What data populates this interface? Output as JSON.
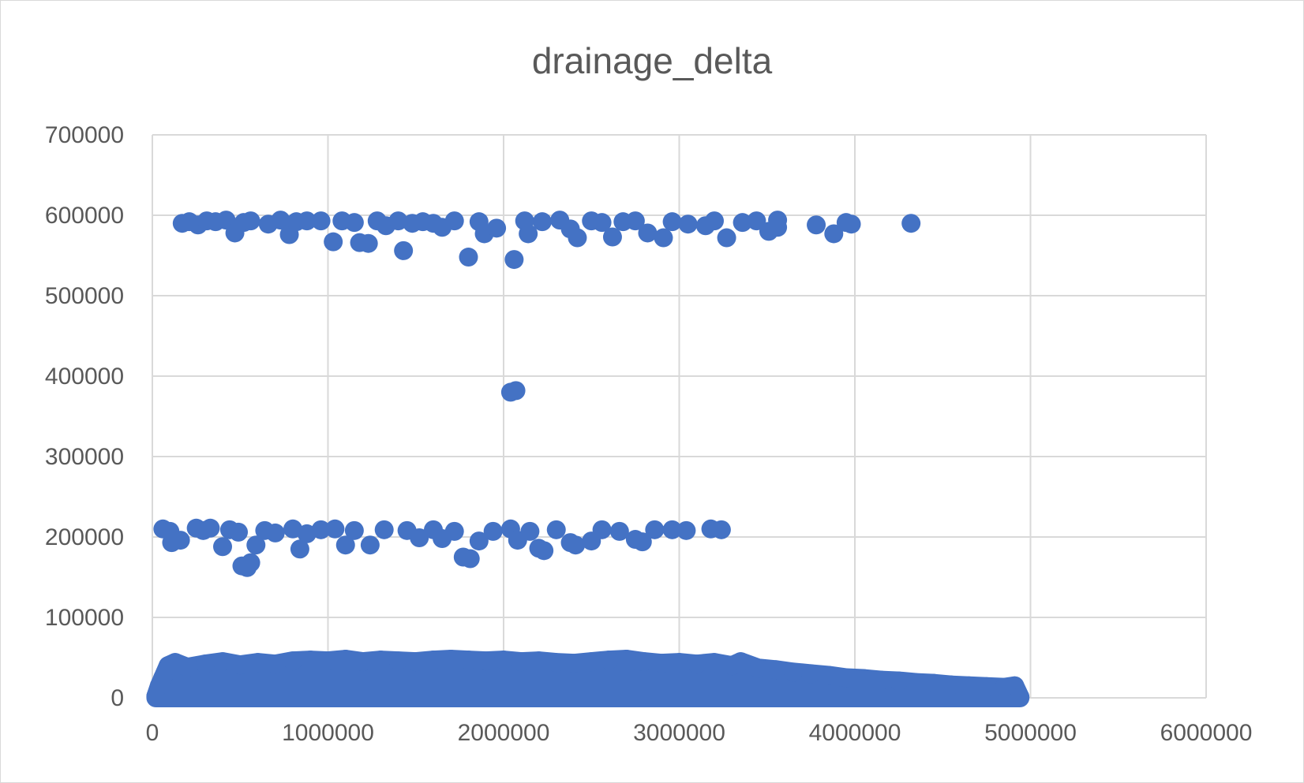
{
  "chart_data": {
    "type": "scatter",
    "title": "drainage_delta",
    "xlabel": "",
    "ylabel": "",
    "xlim": [
      0,
      6000000
    ],
    "ylim": [
      0,
      700000
    ],
    "x_ticks": [
      0,
      1000000,
      2000000,
      3000000,
      4000000,
      5000000,
      6000000
    ],
    "y_ticks": [
      0,
      100000,
      200000,
      300000,
      400000,
      500000,
      600000,
      700000
    ],
    "x_tick_labels": [
      "0",
      "1000000",
      "2000000",
      "3000000",
      "4000000",
      "5000000",
      "6000000"
    ],
    "y_tick_labels": [
      "0",
      "100000",
      "200000",
      "300000",
      "400000",
      "500000",
      "600000",
      "700000"
    ],
    "grid": true,
    "legend": "none",
    "marker_color": "#4472C4",
    "series": [
      {
        "points": [
          [
            170000,
            590000
          ],
          [
            210000,
            592000
          ],
          [
            260000,
            588000
          ],
          [
            310000,
            593000
          ],
          [
            360000,
            592000
          ],
          [
            420000,
            594000
          ],
          [
            470000,
            578000
          ],
          [
            520000,
            591000
          ],
          [
            560000,
            593000
          ],
          [
            660000,
            589000
          ],
          [
            730000,
            594000
          ],
          [
            780000,
            576000
          ],
          [
            820000,
            592000
          ],
          [
            880000,
            593000
          ],
          [
            960000,
            593000
          ],
          [
            1030000,
            567000
          ],
          [
            1080000,
            593000
          ],
          [
            1150000,
            591000
          ],
          [
            1180000,
            566000
          ],
          [
            1230000,
            565000
          ],
          [
            1280000,
            593000
          ],
          [
            1330000,
            587000
          ],
          [
            1400000,
            593000
          ],
          [
            1430000,
            556000
          ],
          [
            1480000,
            590000
          ],
          [
            1540000,
            592000
          ],
          [
            1600000,
            590000
          ],
          [
            1650000,
            585000
          ],
          [
            1720000,
            593000
          ],
          [
            1800000,
            548000
          ],
          [
            1860000,
            592000
          ],
          [
            1890000,
            577000
          ],
          [
            1960000,
            584000
          ],
          [
            2060000,
            545000
          ],
          [
            2120000,
            593000
          ],
          [
            2140000,
            577000
          ],
          [
            2220000,
            592000
          ],
          [
            2320000,
            594000
          ],
          [
            2380000,
            583000
          ],
          [
            2420000,
            572000
          ],
          [
            2500000,
            593000
          ],
          [
            2560000,
            591000
          ],
          [
            2620000,
            573000
          ],
          [
            2680000,
            592000
          ],
          [
            2750000,
            593000
          ],
          [
            2820000,
            578000
          ],
          [
            2910000,
            572000
          ],
          [
            2960000,
            592000
          ],
          [
            3050000,
            589000
          ],
          [
            3150000,
            587000
          ],
          [
            3200000,
            593000
          ],
          [
            3270000,
            572000
          ],
          [
            3360000,
            591000
          ],
          [
            3440000,
            593000
          ],
          [
            3510000,
            580000
          ],
          [
            3560000,
            594000
          ],
          [
            3560000,
            585000
          ],
          [
            3780000,
            588000
          ],
          [
            3880000,
            577000
          ],
          [
            3950000,
            591000
          ],
          [
            3980000,
            589000
          ],
          [
            4320000,
            590000
          ],
          [
            2040000,
            380000
          ],
          [
            2070000,
            382000
          ],
          [
            60000,
            210000
          ],
          [
            100000,
            207000
          ],
          [
            110000,
            193000
          ],
          [
            160000,
            196000
          ],
          [
            250000,
            211000
          ],
          [
            290000,
            208000
          ],
          [
            330000,
            211000
          ],
          [
            400000,
            188000
          ],
          [
            440000,
            209000
          ],
          [
            490000,
            206000
          ],
          [
            510000,
            164000
          ],
          [
            540000,
            162000
          ],
          [
            560000,
            168000
          ],
          [
            590000,
            190000
          ],
          [
            640000,
            208000
          ],
          [
            700000,
            205000
          ],
          [
            800000,
            210000
          ],
          [
            840000,
            185000
          ],
          [
            880000,
            204000
          ],
          [
            960000,
            209000
          ],
          [
            1040000,
            210000
          ],
          [
            1100000,
            190000
          ],
          [
            1150000,
            208000
          ],
          [
            1240000,
            190000
          ],
          [
            1320000,
            209000
          ],
          [
            1450000,
            208000
          ],
          [
            1520000,
            199000
          ],
          [
            1600000,
            209000
          ],
          [
            1650000,
            198000
          ],
          [
            1720000,
            207000
          ],
          [
            1770000,
            175000
          ],
          [
            1810000,
            173000
          ],
          [
            1860000,
            195000
          ],
          [
            1940000,
            207000
          ],
          [
            2040000,
            210000
          ],
          [
            2080000,
            196000
          ],
          [
            2150000,
            207000
          ],
          [
            2200000,
            186000
          ],
          [
            2230000,
            183000
          ],
          [
            2300000,
            209000
          ],
          [
            2380000,
            193000
          ],
          [
            2410000,
            190000
          ],
          [
            2500000,
            195000
          ],
          [
            2560000,
            209000
          ],
          [
            2660000,
            207000
          ],
          [
            2750000,
            197000
          ],
          [
            2790000,
            194000
          ],
          [
            2860000,
            209000
          ],
          [
            2960000,
            209000
          ],
          [
            3040000,
            208000
          ],
          [
            3180000,
            210000
          ],
          [
            3240000,
            209000
          ],
          [
            20000,
            2000
          ],
          [
            40000,
            15000
          ],
          [
            60000,
            25000
          ],
          [
            90000,
            40000
          ],
          [
            130000,
            44000
          ],
          [
            200000,
            38000
          ],
          [
            300000,
            42000
          ],
          [
            400000,
            45000
          ],
          [
            500000,
            41000
          ],
          [
            600000,
            44000
          ],
          [
            700000,
            42000
          ],
          [
            800000,
            46000
          ],
          [
            900000,
            47000
          ],
          [
            1000000,
            46000
          ],
          [
            1100000,
            48000
          ],
          [
            1200000,
            45000
          ],
          [
            1300000,
            47000
          ],
          [
            1400000,
            46000
          ],
          [
            1500000,
            45000
          ],
          [
            1600000,
            47000
          ],
          [
            1700000,
            48000
          ],
          [
            1800000,
            47000
          ],
          [
            1900000,
            46000
          ],
          [
            2000000,
            47000
          ],
          [
            2100000,
            45000
          ],
          [
            2200000,
            46000
          ],
          [
            2300000,
            44000
          ],
          [
            2400000,
            43000
          ],
          [
            2500000,
            45000
          ],
          [
            2600000,
            47000
          ],
          [
            2700000,
            48000
          ],
          [
            2800000,
            45000
          ],
          [
            2900000,
            43000
          ],
          [
            3000000,
            44000
          ],
          [
            3100000,
            42000
          ],
          [
            3200000,
            44000
          ],
          [
            3300000,
            40000
          ],
          [
            3350000,
            45000
          ],
          [
            3450000,
            37000
          ],
          [
            3550000,
            35000
          ],
          [
            3650000,
            32000
          ],
          [
            3750000,
            30000
          ],
          [
            3850000,
            28000
          ],
          [
            3950000,
            25000
          ],
          [
            4050000,
            24000
          ],
          [
            4150000,
            22000
          ],
          [
            4250000,
            21000
          ],
          [
            4350000,
            19000
          ],
          [
            4450000,
            18000
          ],
          [
            4550000,
            16000
          ],
          [
            4650000,
            15000
          ],
          [
            4750000,
            14000
          ],
          [
            4850000,
            13000
          ],
          [
            4910000,
            15000
          ],
          [
            4940000,
            1000
          ]
        ]
      }
    ]
  }
}
